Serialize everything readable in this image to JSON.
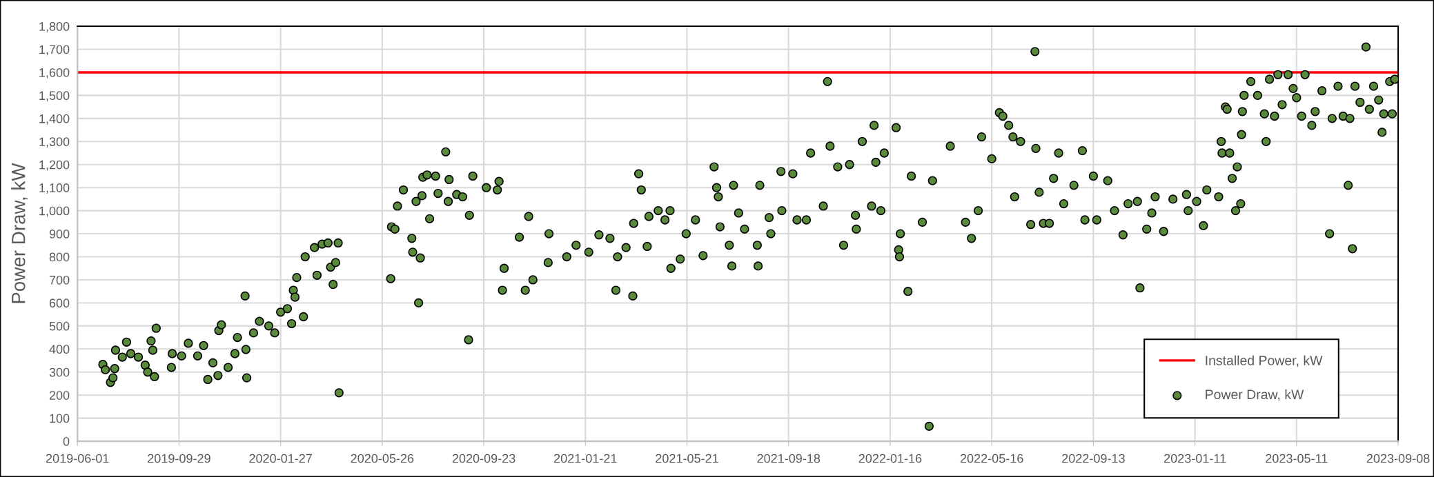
{
  "chart_data": {
    "type": "scatter",
    "ylabel": "Power Draw, kW",
    "xlim": [
      "2019-06-01",
      "2023-09-08"
    ],
    "xticks": [
      "2019-06-01",
      "2019-09-29",
      "2020-01-27",
      "2020-05-26",
      "2020-09-23",
      "2021-01-21",
      "2021-05-21",
      "2021-09-18",
      "2022-01-16",
      "2022-05-16",
      "2022-09-13",
      "2023-01-11",
      "2023-05-11",
      "2023-09-08"
    ],
    "ylim": [
      0,
      1800
    ],
    "yticks": [
      0,
      100,
      200,
      300,
      400,
      500,
      600,
      700,
      800,
      900,
      {
        "value": 1000,
        "label": "1,000"
      },
      {
        "value": 1100,
        "label": "1,100"
      },
      {
        "value": 1200,
        "label": "1,200"
      },
      {
        "value": 1300,
        "label": "1,300"
      },
      {
        "value": 1400,
        "label": "1,400"
      },
      {
        "value": 1500,
        "label": "1,500"
      },
      {
        "value": 1600,
        "label": "1,600"
      },
      {
        "value": 1700,
        "label": "1,700"
      },
      {
        "value": 1800,
        "label": "1,800"
      }
    ],
    "grid": true,
    "legend": "bottom right",
    "marker": "circle",
    "ref_lines": [
      {
        "axis": "y",
        "value": 1600,
        "label": "Installed Power, kW",
        "color": "#ff0000",
        "line_style": "solid"
      }
    ],
    "series": [
      {
        "name": "Power Draw, kW",
        "color": "#5a8a3c",
        "x": [
          "2019-07-01",
          "2019-07-04",
          "2019-07-10",
          "2019-07-13",
          "2019-07-15",
          "2019-07-16",
          "2019-07-24",
          "2019-07-29",
          "2019-08-03",
          "2019-08-12",
          "2019-08-20",
          "2019-08-23",
          "2019-08-27",
          "2019-08-29",
          "2019-08-31",
          "2019-09-02",
          "2019-09-20",
          "2019-09-21",
          "2019-10-02",
          "2019-10-10",
          "2019-10-21",
          "2019-10-28",
          "2019-11-02",
          "2019-11-08",
          "2019-11-14",
          "2019-11-15",
          "2019-11-18",
          "2019-11-26",
          "2019-12-04",
          "2019-12-07",
          "2019-12-16",
          "2019-12-17",
          "2019-12-18",
          "2019-12-26",
          "2020-01-02",
          "2020-01-13",
          "2020-01-20",
          "2020-01-27",
          "2020-02-04",
          "2020-02-09",
          "2020-02-11",
          "2020-02-13",
          "2020-02-15",
          "2020-02-23",
          "2020-02-25",
          "2020-03-07",
          "2020-03-10",
          "2020-03-16",
          "2020-03-23",
          "2020-03-26",
          "2020-03-29",
          "2020-04-01",
          "2020-04-04",
          "2020-04-05",
          "2020-06-05",
          "2020-06-06",
          "2020-06-10",
          "2020-06-13",
          "2020-06-20",
          "2020-06-30",
          "2020-07-01",
          "2020-07-05",
          "2020-07-08",
          "2020-07-10",
          "2020-07-12",
          "2020-07-13",
          "2020-07-18",
          "2020-07-21",
          "2020-07-28",
          "2020-07-31",
          "2020-08-09",
          "2020-08-12",
          "2020-08-13",
          "2020-08-22",
          "2020-08-29",
          "2020-09-05",
          "2020-09-06",
          "2020-09-10",
          "2020-09-26",
          "2020-10-09",
          "2020-10-11",
          "2020-10-15",
          "2020-10-17",
          "2020-11-04",
          "2020-11-11",
          "2020-11-15",
          "2020-11-20",
          "2020-12-08",
          "2020-12-09",
          "2020-12-30",
          "2021-01-10",
          "2021-01-25",
          "2021-02-06",
          "2021-02-19",
          "2021-02-26",
          "2021-02-28",
          "2021-03-10",
          "2021-03-18",
          "2021-03-19",
          "2021-03-25",
          "2021-03-28",
          "2021-04-04",
          "2021-04-06",
          "2021-04-17",
          "2021-04-25",
          "2021-05-01",
          "2021-05-02",
          "2021-05-13",
          "2021-05-20",
          "2021-05-31",
          "2021-06-09",
          "2021-06-22",
          "2021-06-25",
          "2021-06-27",
          "2021-06-29",
          "2021-07-10",
          "2021-07-13",
          "2021-07-15",
          "2021-07-21",
          "2021-07-28",
          "2021-08-12",
          "2021-08-13",
          "2021-08-15",
          "2021-08-26",
          "2021-08-28",
          "2021-09-09",
          "2021-09-10",
          "2021-09-23",
          "2021-09-28",
          "2021-10-09",
          "2021-10-14",
          "2021-10-29",
          "2021-11-03",
          "2021-11-06",
          "2021-11-15",
          "2021-11-22",
          "2021-11-29",
          "2021-12-06",
          "2021-12-07",
          "2021-12-14",
          "2021-12-25",
          "2021-12-28",
          "2021-12-30",
          "2022-01-05",
          "2022-01-09",
          "2022-01-23",
          "2022-01-26",
          "2022-01-27",
          "2022-01-28",
          "2022-02-06",
          "2022-02-10",
          "2022-02-23",
          "2022-03-03",
          "2022-03-07",
          "2022-03-28",
          "2022-04-15",
          "2022-04-22",
          "2022-04-30",
          "2022-05-04",
          "2022-05-16",
          "2022-05-25",
          "2022-05-29",
          "2022-06-05",
          "2022-06-10",
          "2022-06-12",
          "2022-06-19",
          "2022-07-01",
          "2022-07-06",
          "2022-07-07",
          "2022-07-11",
          "2022-07-16",
          "2022-07-23",
          "2022-07-28",
          "2022-08-03",
          "2022-08-09",
          "2022-08-21",
          "2022-08-31",
          "2022-09-03",
          "2022-09-13",
          "2022-09-17",
          "2022-09-30",
          "2022-10-08",
          "2022-10-18",
          "2022-10-24",
          "2022-11-04",
          "2022-11-07",
          "2022-11-15",
          "2022-11-21",
          "2022-11-25",
          "2022-12-05",
          "2022-12-16",
          "2023-01-01",
          "2023-01-03",
          "2023-01-13",
          "2023-01-21",
          "2023-01-25",
          "2023-02-08",
          "2023-02-11",
          "2023-02-12",
          "2023-02-16",
          "2023-02-18",
          "2023-02-21",
          "2023-02-24",
          "2023-02-28",
          "2023-03-02",
          "2023-03-06",
          "2023-03-07",
          "2023-03-08",
          "2023-03-10",
          "2023-03-18",
          "2023-03-26",
          "2023-04-03",
          "2023-04-05",
          "2023-04-09",
          "2023-04-15",
          "2023-04-19",
          "2023-04-24",
          "2023-05-01",
          "2023-05-07",
          "2023-05-11",
          "2023-05-17",
          "2023-05-21",
          "2023-05-29",
          "2023-06-02",
          "2023-06-10",
          "2023-06-19",
          "2023-06-22",
          "2023-06-29",
          "2023-07-05",
          "2023-07-11",
          "2023-07-13",
          "2023-07-16",
          "2023-07-19",
          "2023-07-25",
          "2023-08-01",
          "2023-08-05",
          "2023-08-10",
          "2023-08-16",
          "2023-08-20",
          "2023-08-22",
          "2023-08-29",
          "2023-09-01",
          "2023-09-04"
        ],
        "values": [
          333,
          310,
          255,
          275,
          315,
          395,
          365,
          430,
          380,
          365,
          330,
          300,
          435,
          395,
          280,
          490,
          320,
          380,
          370,
          425,
          370,
          415,
          268,
          340,
          285,
          480,
          505,
          320,
          380,
          450,
          630,
          398,
          275,
          470,
          520,
          500,
          470,
          560,
          575,
          510,
          655,
          625,
          710,
          540,
          800,
          840,
          720,
          855,
          860,
          755,
          680,
          775,
          860,
          210,
          705,
          930,
          920,
          1020,
          1090,
          880,
          820,
          1040,
          600,
          795,
          1065,
          1145,
          1155,
          965,
          1150,
          1075,
          1255,
          1040,
          1135,
          1070,
          1060,
          440,
          980,
          1150,
          1100,
          1090,
          1127,
          655,
          750,
          885,
          655,
          975,
          700,
          775,
          900,
          800,
          850,
          820,
          895,
          880,
          655,
          800,
          840,
          630,
          945,
          1160,
          1090,
          845,
          975,
          1000,
          960,
          1000,
          750,
          790,
          900,
          960,
          805,
          1190,
          1100,
          1060,
          930,
          850,
          760,
          1110,
          990,
          920,
          850,
          760,
          1110,
          970,
          900,
          1170,
          1000,
          1160,
          960,
          960,
          1250,
          1020,
          1560,
          1280,
          1190,
          850,
          1200,
          980,
          920,
          1300,
          1020,
          1370,
          1210,
          1000,
          1250,
          1360,
          830,
          800,
          900,
          650,
          1150,
          950,
          65,
          1130,
          1280,
          950,
          880,
          1000,
          1320,
          1225,
          1425,
          1410,
          1370,
          1320,
          1060,
          1300,
          940,
          1690,
          1270,
          1080,
          945,
          945,
          1140,
          1250,
          1030,
          1110,
          1260,
          960,
          1150,
          960,
          1130,
          1000,
          895,
          1030,
          1040,
          665,
          920,
          990,
          1060,
          910,
          1050,
          1070,
          1000,
          1040,
          935,
          1090,
          1060,
          1300,
          1250,
          1450,
          1440,
          1250,
          1140,
          1000,
          1190,
          1030,
          1330,
          1430,
          1500,
          1560,
          1500,
          1420,
          1300,
          1570,
          1410,
          1590,
          1460,
          1590,
          1530,
          1490,
          1410,
          1590,
          1370,
          1430,
          1520,
          900,
          1400,
          1540,
          1410,
          1110,
          1400,
          835,
          1540,
          1470,
          1710,
          1440,
          1540,
          1480,
          1340,
          1420,
          1560,
          1420,
          1570
        ]
      }
    ]
  }
}
